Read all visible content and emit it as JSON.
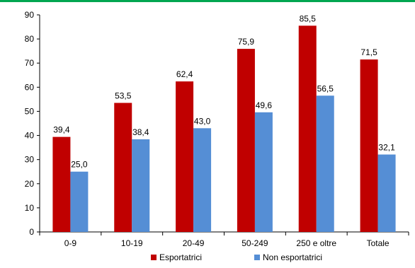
{
  "chart_data": {
    "type": "bar",
    "categories": [
      "0-9",
      "10-19",
      "20-49",
      "50-249",
      "250 e oltre",
      "Totale"
    ],
    "series": [
      {
        "name": "Esportatrici",
        "values": [
          39.4,
          53.5,
          62.4,
          75.9,
          85.5,
          71.5
        ],
        "labels": [
          "39,4",
          "53,5",
          "62,4",
          "75,9",
          "85,5",
          "71,5"
        ],
        "color": "#C00000"
      },
      {
        "name": "Non esportatrici",
        "values": [
          25.0,
          38.4,
          43.0,
          49.6,
          56.5,
          32.1
        ],
        "labels": [
          "25,0",
          "38,4",
          "43,0",
          "49,6",
          "56,5",
          "32,1"
        ],
        "color": "#558ED5"
      }
    ],
    "ylim": [
      0,
      90
    ],
    "yticks": [
      0,
      10,
      20,
      30,
      40,
      50,
      60,
      70,
      80,
      90
    ],
    "grid": false,
    "legend_position": "bottom",
    "accent_color": "#00A651"
  }
}
